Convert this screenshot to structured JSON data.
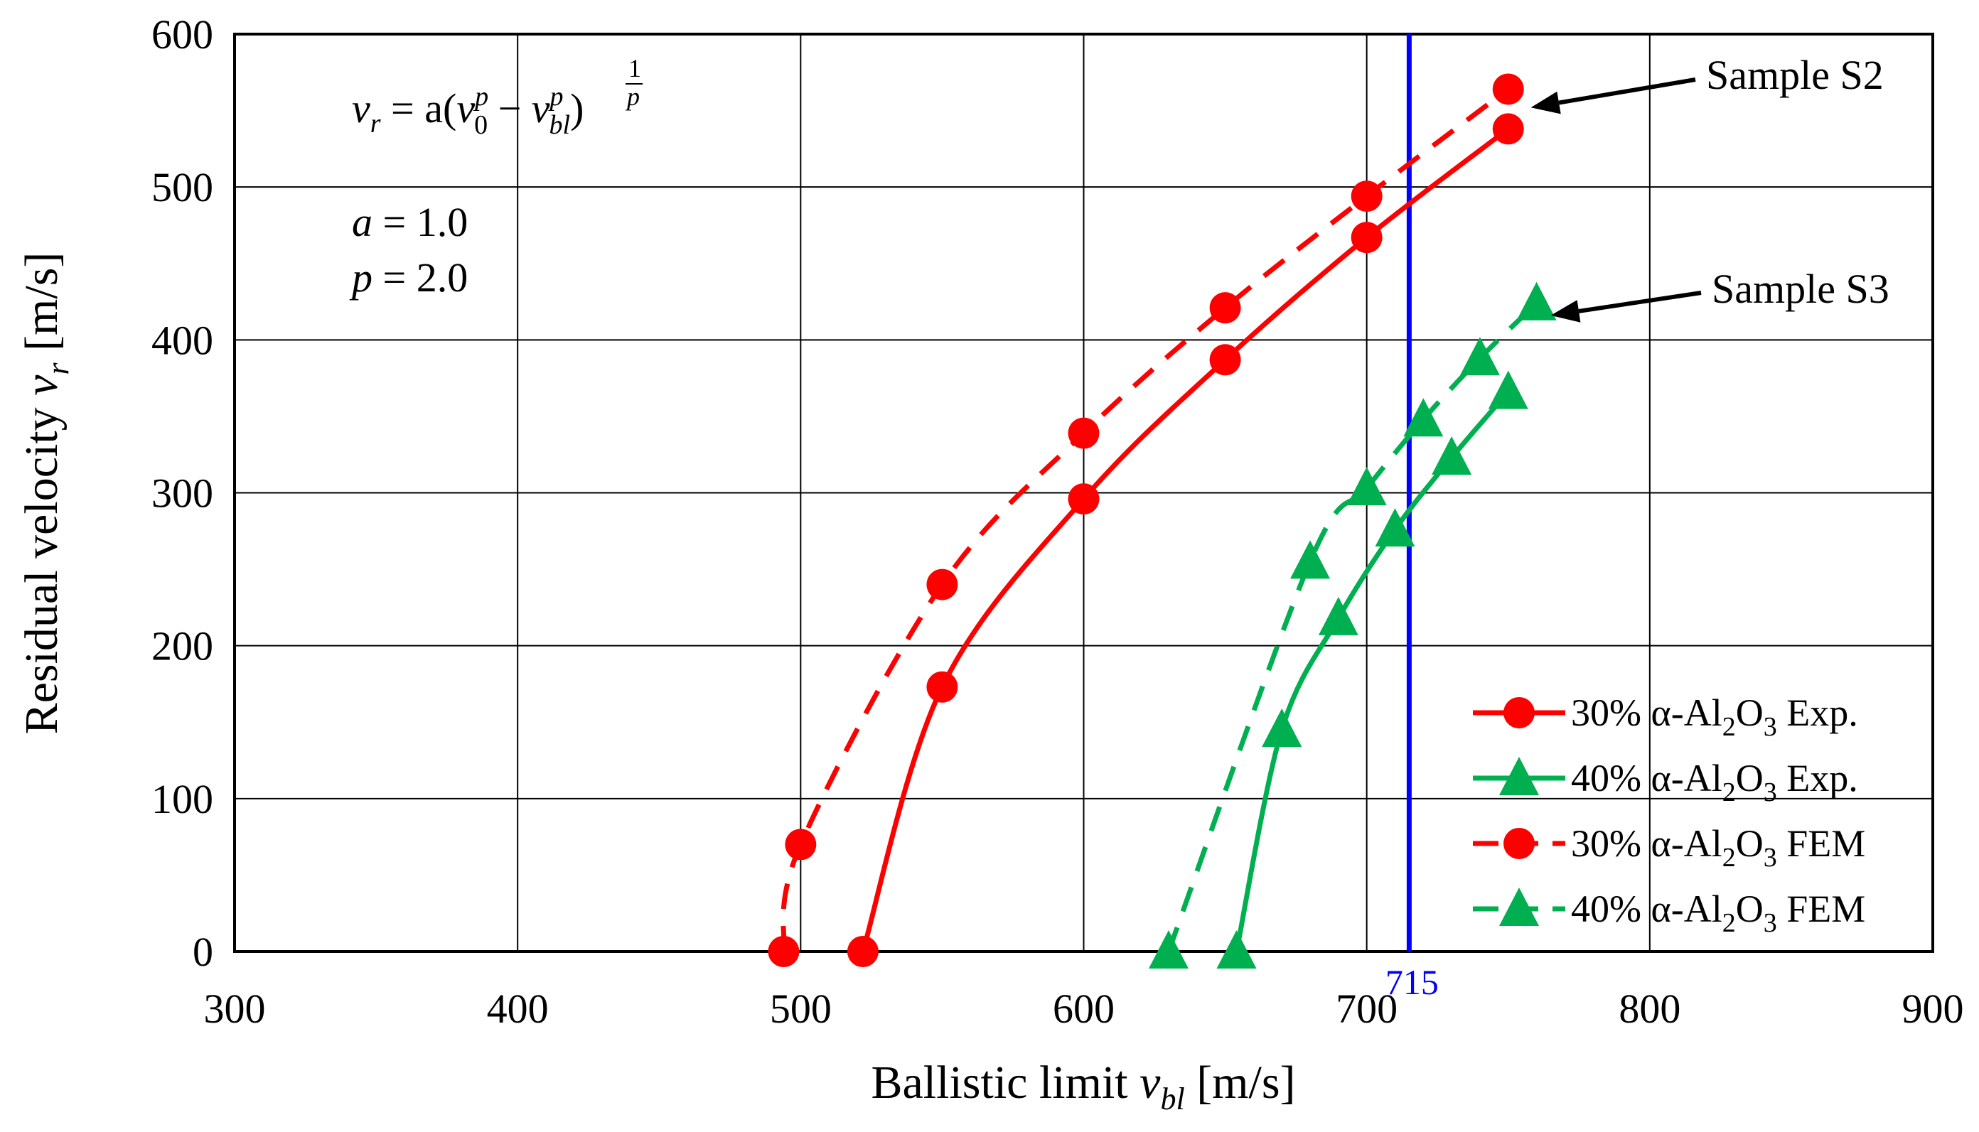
{
  "chart_data": {
    "type": "line",
    "xlabel": "Ballistic limit",
    "xlabel_symbol": "v",
    "xlabel_symbol_sub": "bl",
    "xlabel_unit": "[m/s]",
    "ylabel": "Residual velocity",
    "ylabel_symbol": "v",
    "ylabel_symbol_sub": "r",
    "ylabel_unit": "[m/s]",
    "xlim": [
      300,
      900
    ],
    "ylim": [
      0,
      600
    ],
    "xticks": [
      300,
      400,
      500,
      600,
      700,
      800,
      900
    ],
    "yticks": [
      0,
      100,
      200,
      300,
      400,
      500,
      600
    ],
    "grid": true,
    "legend_position": "bottom-right",
    "series": [
      {
        "name": "30% α-Al2O3 Exp.",
        "prefix": "30% α-Al",
        "sub": "2",
        "mid": "O",
        "sub2": "3",
        "suffix": " Exp.",
        "color": "#ff0000",
        "marker": "circle",
        "dash": false,
        "x": [
          522,
          550,
          600,
          650,
          700,
          750
        ],
        "y": [
          0,
          173,
          296,
          387,
          467,
          538
        ]
      },
      {
        "name": "40% α-Al2O3 Exp.",
        "prefix": "40% α-Al",
        "sub": "2",
        "mid": "O",
        "sub2": "3",
        "suffix": " Exp.",
        "color": "#00b050",
        "marker": "triangle",
        "dash": false,
        "x": [
          654,
          670,
          690,
          710,
          730,
          750
        ],
        "y": [
          0,
          145,
          218,
          276,
          323,
          366
        ]
      },
      {
        "name": "30% α-Al2O3 FEM",
        "prefix": "30% α-Al",
        "sub": "2",
        "mid": "O",
        "sub2": "3",
        "suffix": " FEM",
        "color": "#ff0000",
        "marker": "circle",
        "dash": true,
        "x": [
          494,
          500,
          550,
          600,
          650,
          700,
          750
        ],
        "y": [
          0,
          70,
          240,
          339,
          421,
          494,
          564
        ]
      },
      {
        "name": "40% α-Al2O3 FEM",
        "prefix": "40% α-Al",
        "sub": "2",
        "mid": "O",
        "sub2": "3",
        "suffix": " FEM",
        "color": "#00b050",
        "marker": "triangle",
        "dash": true,
        "x": [
          630,
          680,
          700,
          720,
          740,
          760
        ],
        "y": [
          0,
          255,
          303,
          348,
          388,
          424
        ]
      }
    ],
    "vertical_line": {
      "x": 715,
      "label": "715",
      "color": "#0000ff"
    },
    "annotations": [
      {
        "text": "Sample S2",
        "arrow_to": [
          758,
          552
        ]
      },
      {
        "text": "Sample S3",
        "arrow_to": [
          765,
          416
        ]
      }
    ],
    "formula": {
      "lhs": "v",
      "lhs_sub": "r",
      "eq": " = a(",
      "v0": "v",
      "v0_sub": "0",
      "v0_sup": "p",
      "minus": " − ",
      "vbl": "v",
      "vbl_sub": "bl",
      "vbl_sup": "p",
      "close": ")",
      "exp": "1",
      "exp_den": "p"
    },
    "params": [
      {
        "name": "a",
        "value": " = 1.0"
      },
      {
        "name": "p",
        "value": " = 2.0"
      }
    ]
  }
}
